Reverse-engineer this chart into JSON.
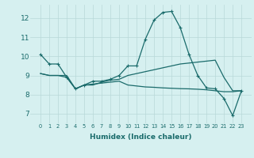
{
  "xlabel": "Humidex (Indice chaleur)",
  "ylabel": "",
  "x_values": [
    0,
    1,
    2,
    3,
    4,
    5,
    6,
    7,
    8,
    9,
    10,
    11,
    12,
    13,
    14,
    15,
    16,
    17,
    18,
    19,
    20,
    21,
    22,
    23
  ],
  "line1": [
    10.1,
    9.6,
    9.6,
    8.9,
    8.3,
    8.5,
    8.7,
    8.7,
    8.8,
    9.0,
    9.5,
    9.5,
    10.9,
    11.9,
    12.3,
    12.35,
    11.5,
    10.1,
    9.0,
    8.35,
    8.3,
    7.8,
    6.9,
    8.2
  ],
  "line2": [
    9.1,
    9.0,
    9.0,
    8.9,
    8.3,
    8.5,
    8.5,
    8.65,
    8.75,
    8.8,
    9.0,
    9.1,
    9.2,
    9.3,
    9.4,
    9.5,
    9.6,
    9.65,
    9.7,
    9.75,
    9.8,
    8.9,
    8.2,
    8.2
  ],
  "line3": [
    9.1,
    9.0,
    9.0,
    9.0,
    8.3,
    8.5,
    8.55,
    8.6,
    8.65,
    8.7,
    8.5,
    8.45,
    8.4,
    8.38,
    8.35,
    8.33,
    8.31,
    8.3,
    8.28,
    8.25,
    8.2,
    8.15,
    8.15,
    8.2
  ],
  "line_color": "#1a6b6b",
  "bg_color": "#d6f0f0",
  "grid_color": "#b8d8d8",
  "ylim": [
    6.5,
    12.7
  ],
  "yticks": [
    7,
    8,
    9,
    10,
    11,
    12
  ],
  "xticks": [
    0,
    1,
    2,
    3,
    4,
    5,
    6,
    7,
    8,
    9,
    10,
    11,
    12,
    13,
    14,
    15,
    16,
    17,
    18,
    19,
    20,
    21,
    22,
    23
  ],
  "marker": "+",
  "xlabel_fontsize": 6.5,
  "xlabel_fontweight": "bold",
  "xtick_fontsize": 4.8,
  "ytick_fontsize": 6.5,
  "linewidth": 0.9,
  "markersize": 2.8
}
